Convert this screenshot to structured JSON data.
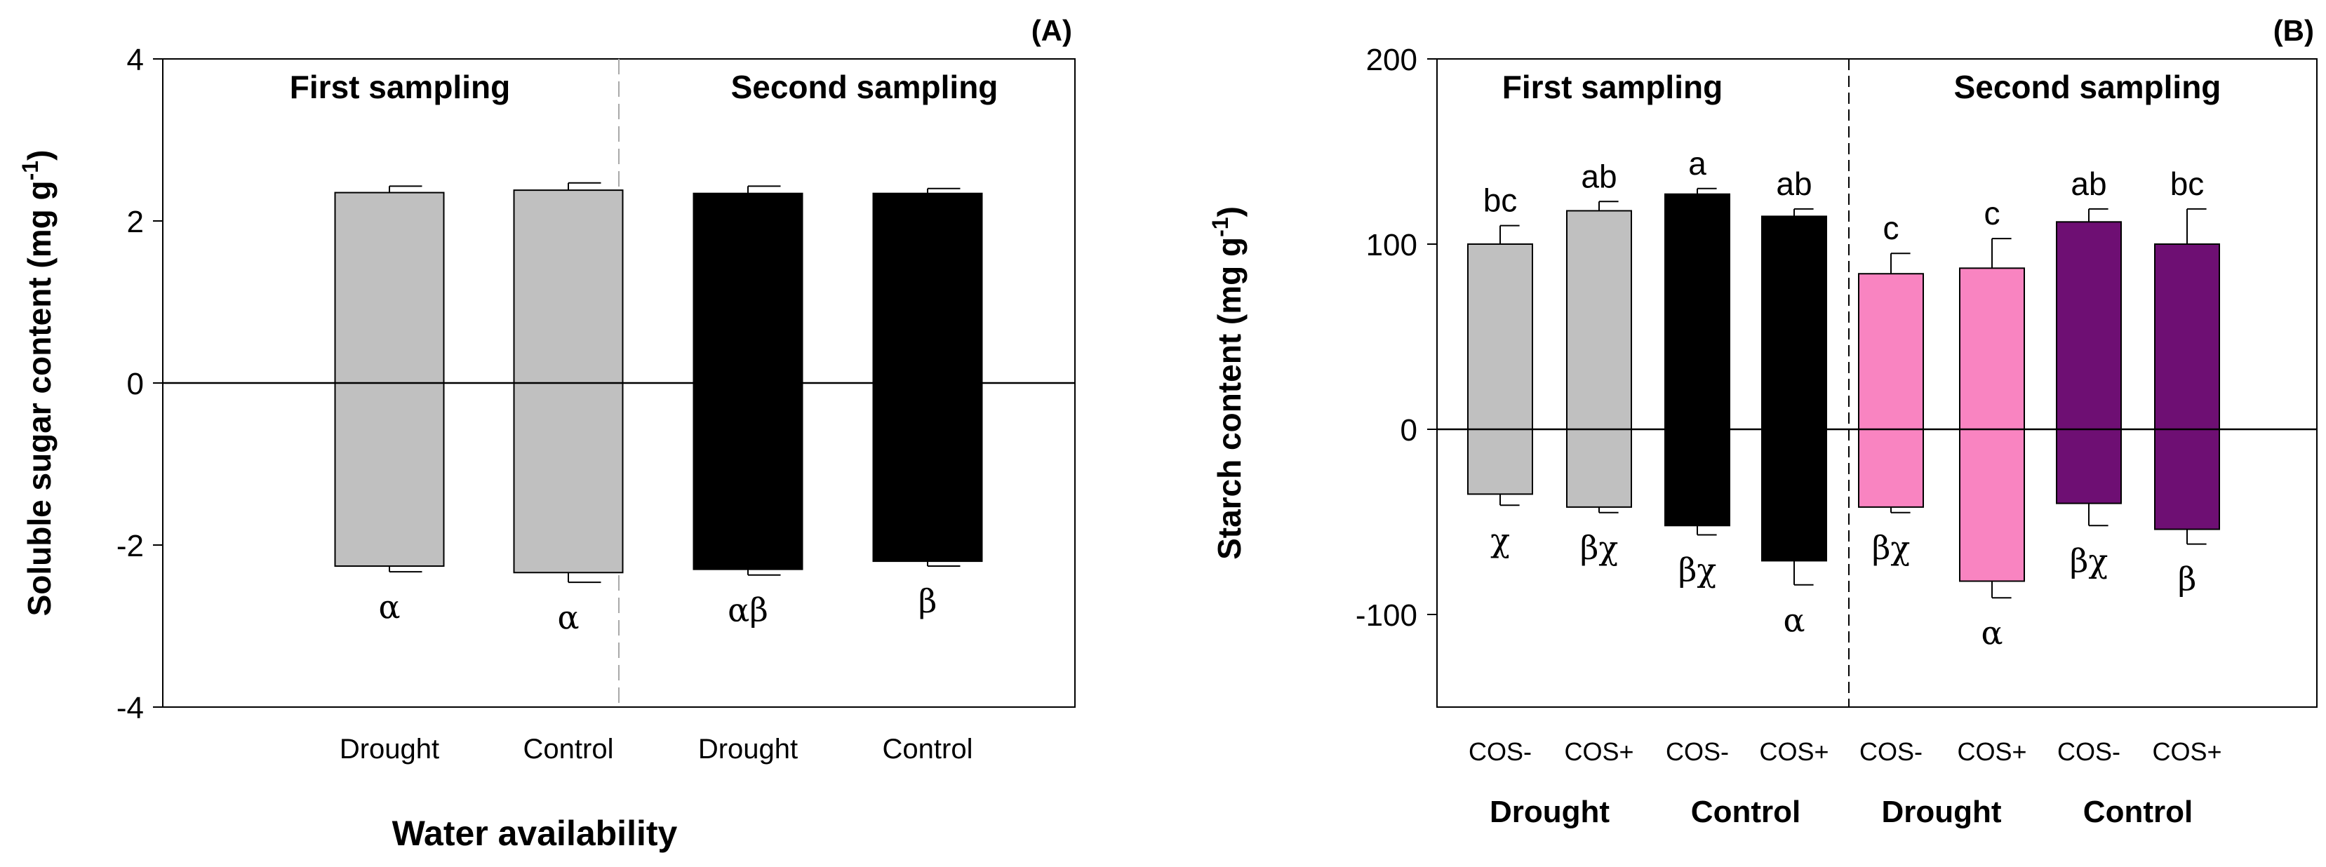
{
  "colors": {
    "axis": "#000000",
    "divider_a": "#a9a9a9",
    "divider_b": "#000000",
    "first_sampling": "#c0c0c0",
    "second_sampling_a": "#000000",
    "drought_cos_b": "#f984c1",
    "control_cos_b": "#6e0f73"
  },
  "chart_data": [
    {
      "type": "bar",
      "panel_label": "(A)",
      "title": "",
      "xlabel": "Water availability",
      "ylabel": "Soluble sugar content (mg g",
      "ylabel_sup": "-1",
      "ylabel_close": ")",
      "ylim": [
        -4,
        4
      ],
      "yticks": [
        "-4",
        "-2",
        "0",
        "2",
        "4"
      ],
      "grid": false,
      "group_labels": [
        "First sampling",
        "Second sampling"
      ],
      "categories": [
        "Drought",
        "Control",
        "Drought",
        "Control"
      ],
      "series": [
        {
          "name": "Positive side",
          "values": [
            2.35,
            2.38,
            2.34,
            2.34
          ],
          "errors": [
            0.08,
            0.09,
            0.09,
            0.06
          ],
          "letters": [
            "",
            "",
            "",
            ""
          ]
        },
        {
          "name": "Negative side",
          "values": [
            -2.26,
            -2.34,
            -2.3,
            -2.2
          ],
          "errors": [
            0.07,
            0.12,
            0.07,
            0.06
          ],
          "letters": [
            "α",
            "α",
            "αβ",
            "β"
          ]
        }
      ],
      "bar_colors": [
        "first_sampling",
        "first_sampling",
        "second_sampling_a",
        "second_sampling_a"
      ]
    },
    {
      "type": "bar",
      "panel_label": "(B)",
      "title": "",
      "xlabel": "",
      "ylabel": "Starch content (mg g",
      "ylabel_sup": "-1",
      "ylabel_close": ")",
      "ylim": [
        -150,
        200
      ],
      "yticks": [
        "-100",
        "0",
        "100",
        "200"
      ],
      "grid": false,
      "group_labels": [
        "First sampling",
        "Second sampling"
      ],
      "categories": [
        "COS-",
        "COS+",
        "COS-",
        "COS+",
        "COS-",
        "COS+",
        "COS-",
        "COS+"
      ],
      "subgroup_labels": [
        "Drought",
        "Control",
        "Drought",
        "Control"
      ],
      "series": [
        {
          "name": "Positive side",
          "values": [
            100,
            118,
            127,
            115,
            84,
            87,
            112,
            100
          ],
          "errors": [
            10,
            5,
            3,
            4,
            11,
            16,
            7,
            19
          ],
          "letters": [
            "bc",
            "ab",
            "a",
            "ab",
            "c",
            "c",
            "ab",
            "bc"
          ]
        },
        {
          "name": "Negative side",
          "values": [
            -35,
            -42,
            -52,
            -71,
            -42,
            -82,
            -40,
            -54
          ],
          "errors": [
            6,
            3,
            5,
            13,
            3,
            9,
            12,
            8
          ],
          "letters": [
            "χ",
            "βχ",
            "βχ",
            "α",
            "βχ",
            "α",
            "βχ",
            "β"
          ]
        }
      ],
      "bar_colors": [
        "first_sampling",
        "first_sampling",
        "second_sampling_a",
        "second_sampling_a",
        "drought_cos_b",
        "drought_cos_b",
        "control_cos_b",
        "control_cos_b"
      ]
    }
  ]
}
